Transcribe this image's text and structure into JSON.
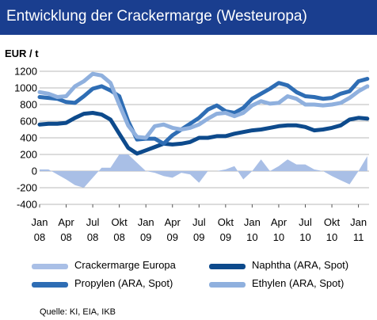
{
  "header": {
    "title": "Entwicklung der Crackermarge (Westeuropa)"
  },
  "colors": {
    "header_bg": "#1a3e8f",
    "cracker": "#a9bfe6",
    "naphtha": "#0d4a8c",
    "propylen": "#2e6db4",
    "ethylen": "#8fb0de"
  },
  "chart_data": {
    "type": "line",
    "ylabel": "EUR / t",
    "ylim": [
      -400,
      1200
    ],
    "yticks": [
      1200,
      1000,
      800,
      600,
      400,
      200,
      0,
      -200,
      -400
    ],
    "xlim": [
      0,
      37.2
    ],
    "xticks": [
      {
        "x": 0,
        "line1": "Jan",
        "line2": "08"
      },
      {
        "x": 3,
        "line1": "Apr",
        "line2": "08"
      },
      {
        "x": 6,
        "line1": "Jul",
        "line2": "08"
      },
      {
        "x": 9,
        "line1": "Okt",
        "line2": "08"
      },
      {
        "x": 12,
        "line1": "Jan",
        "line2": "09"
      },
      {
        "x": 15,
        "line1": "Apr",
        "line2": "09"
      },
      {
        "x": 18,
        "line1": "Jul",
        "line2": "09"
      },
      {
        "x": 21,
        "line1": "Okt",
        "line2": "09"
      },
      {
        "x": 24,
        "line1": "Jan",
        "line2": "10"
      },
      {
        "x": 27,
        "line1": "Apr",
        "line2": "10"
      },
      {
        "x": 30,
        "line1": "Jul",
        "line2": "10"
      },
      {
        "x": 33,
        "line1": "Okt",
        "line2": "10"
      },
      {
        "x": 36,
        "line1": "Jan",
        "line2": "11"
      }
    ],
    "grid": true,
    "series": [
      {
        "name": "Crackermarge Europa",
        "kind": "area",
        "color_key": "cracker",
        "values": [
          20,
          20,
          -40,
          -100,
          -170,
          -200,
          -80,
          40,
          40,
          200,
          200,
          100,
          0,
          -20,
          -60,
          -80,
          -20,
          -40,
          -140,
          0,
          0,
          20,
          60,
          -100,
          0,
          140,
          0,
          60,
          140,
          80,
          80,
          20,
          0,
          -60,
          -110,
          -160,
          0,
          180
        ]
      },
      {
        "name": "Naphtha (ARA, Spot)",
        "kind": "line",
        "color_key": "naphtha",
        "values": [
          560,
          570,
          570,
          580,
          640,
          690,
          700,
          680,
          620,
          450,
          280,
          210,
          250,
          290,
          330,
          320,
          330,
          350,
          400,
          400,
          420,
          420,
          450,
          470,
          490,
          500,
          520,
          540,
          550,
          550,
          530,
          490,
          500,
          520,
          550,
          620,
          640,
          630
        ]
      },
      {
        "name": "Propylen (ARA, Spot)",
        "kind": "line",
        "color_key": "propylen",
        "values": [
          890,
          880,
          870,
          830,
          820,
          900,
          990,
          1020,
          970,
          900,
          600,
          380,
          390,
          390,
          330,
          430,
          500,
          570,
          640,
          740,
          790,
          720,
          700,
          760,
          870,
          930,
          990,
          1060,
          1030,
          950,
          900,
          890,
          870,
          880,
          930,
          960,
          1080,
          1110
        ]
      },
      {
        "name": "Ethylen (ARA, Spot)",
        "kind": "line",
        "color_key": "ethylen",
        "values": [
          950,
          930,
          890,
          900,
          1020,
          1080,
          1170,
          1150,
          1060,
          800,
          550,
          410,
          400,
          540,
          560,
          520,
          500,
          520,
          560,
          630,
          690,
          700,
          660,
          700,
          790,
          840,
          810,
          820,
          900,
          870,
          800,
          800,
          790,
          800,
          820,
          880,
          960,
          1020
        ]
      }
    ],
    "legend": {
      "placement": "bottom",
      "items": [
        {
          "label": "Crackermarge Europa",
          "color_key": "cracker"
        },
        {
          "label": "Naphtha (ARA, Spot)",
          "color_key": "naphtha"
        },
        {
          "label": "Propylen (ARA, Spot)",
          "color_key": "propylen"
        },
        {
          "label": "Ethylen (ARA, Spot)",
          "color_key": "ethylen"
        }
      ]
    }
  },
  "source": "Quelle: KI, EIA, IKB"
}
